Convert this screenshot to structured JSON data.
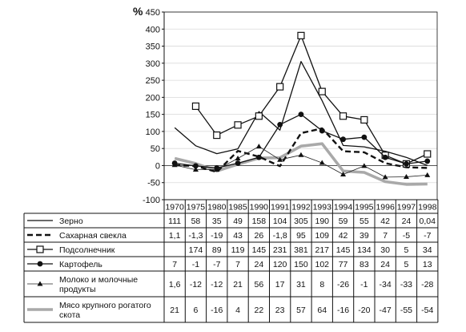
{
  "chart_data": {
    "type": "line",
    "ylabel": "%",
    "ylim": [
      -100,
      450
    ],
    "yticks": [
      -100,
      -50,
      0,
      50,
      100,
      150,
      200,
      250,
      300,
      350,
      400,
      450
    ],
    "categories": [
      "1970",
      "1975",
      "1980",
      "1985",
      "1990",
      "1991",
      "1992",
      "1993",
      "1994",
      "1995",
      "1996",
      "1997",
      "1998"
    ],
    "grid": "horizontal",
    "legend": "data-table-below",
    "series": [
      {
        "name": "Зерно",
        "style": "solid",
        "marker": "none",
        "values": [
          111,
          58,
          35,
          49,
          158,
          104,
          305,
          190,
          59,
          55,
          42,
          24,
          0.04
        ],
        "labels": [
          "111",
          "58",
          "35",
          "49",
          "158",
          "104",
          "305",
          "190",
          "59",
          "55",
          "42",
          "24",
          "0,04"
        ]
      },
      {
        "name": "Сахарная свекла",
        "style": "dashed",
        "marker": "none",
        "values": [
          1.1,
          -1.3,
          -19,
          43,
          26,
          -1.8,
          95,
          109,
          42,
          39,
          7,
          -5,
          -7
        ],
        "labels": [
          "1,1",
          "-1,3",
          "-19",
          "43",
          "26",
          "-1,8",
          "95",
          "109",
          "42",
          "39",
          "7",
          "-5",
          "-7"
        ]
      },
      {
        "name": "Подсолнечник",
        "style": "solid",
        "marker": "square",
        "values": [
          null,
          174,
          89,
          119,
          145,
          231,
          381,
          217,
          145,
          134,
          30,
          5,
          34
        ],
        "labels": [
          "",
          "174",
          "89",
          "119",
          "145",
          "231",
          "381",
          "217",
          "145",
          "134",
          "30",
          "5",
          "34"
        ]
      },
      {
        "name": "Картофель",
        "style": "solid",
        "marker": "circle",
        "values": [
          7,
          -1,
          -7,
          7,
          24,
          120,
          150,
          102,
          77,
          83,
          24,
          5,
          13
        ],
        "labels": [
          "7",
          "-1",
          "-7",
          "7",
          "24",
          "120",
          "150",
          "102",
          "77",
          "83",
          "24",
          "5",
          "13"
        ]
      },
      {
        "name": "Молоко и молочные продукты",
        "style": "thin",
        "marker": "triangle",
        "values": [
          1.6,
          -12,
          -12,
          21,
          56,
          17,
          31,
          8,
          -26,
          -1,
          -34,
          -33,
          -28
        ],
        "labels": [
          "1,6",
          "-12",
          "-12",
          "21",
          "56",
          "17",
          "31",
          "8",
          "-26",
          "-1",
          "-34",
          "-33",
          "-28"
        ]
      },
      {
        "name": "Мясо крупного рогатого скота",
        "style": "thick-gray",
        "marker": "none",
        "values": [
          21,
          6,
          -16,
          4,
          22,
          23,
          57,
          64,
          -16,
          -20,
          -47,
          -55,
          -54
        ],
        "labels": [
          "21",
          "6",
          "-16",
          "4",
          "22",
          "23",
          "57",
          "64",
          "-16",
          "-20",
          "-47",
          "-55",
          "-54"
        ]
      }
    ]
  },
  "row_names": [
    [
      "Зерно"
    ],
    [
      "Сахарная свекла"
    ],
    [
      "Подсолнечник"
    ],
    [
      "Картофель"
    ],
    [
      "Молоко и молочные",
      "продукты"
    ],
    [
      "Мясо крупного рогатого",
      "скота"
    ]
  ]
}
